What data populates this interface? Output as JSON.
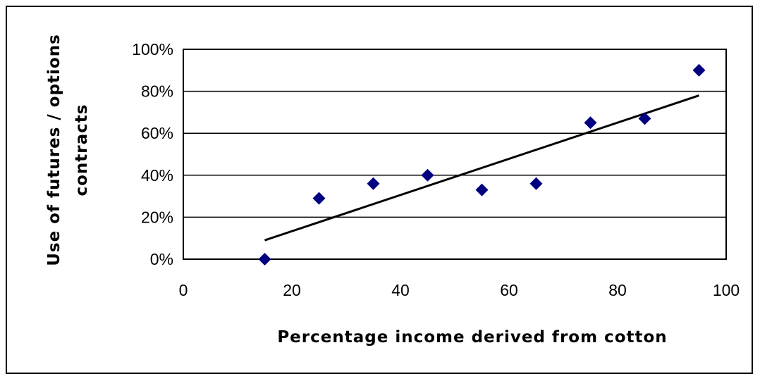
{
  "chart_data": {
    "type": "scatter",
    "title": "",
    "xlabel": "Percentage income derived from cotton",
    "ylabel_lines": [
      "Use of futures / options",
      "contracts"
    ],
    "xlim": [
      0,
      100
    ],
    "ylim": [
      0,
      100
    ],
    "x_ticks": [
      0,
      20,
      40,
      60,
      80,
      100
    ],
    "y_ticks": [
      0,
      20,
      40,
      60,
      80,
      100
    ],
    "x_tick_labels": [
      "0",
      "20",
      "40",
      "60",
      "80",
      "100"
    ],
    "y_tick_labels": [
      "0%",
      "20%",
      "40%",
      "60%",
      "80%",
      "100%"
    ],
    "grid": "horizontal",
    "legend": "none",
    "marker": "diamond",
    "marker_color": "#000080",
    "series": [
      {
        "x": [
          15,
          25,
          35,
          45,
          55,
          65,
          75,
          85,
          95
        ],
        "y": [
          0,
          29,
          36,
          40,
          33,
          36,
          65,
          67,
          90
        ]
      }
    ],
    "trendline": {
      "type": "linear",
      "x": [
        15,
        95
      ],
      "y": [
        9,
        78
      ]
    }
  }
}
